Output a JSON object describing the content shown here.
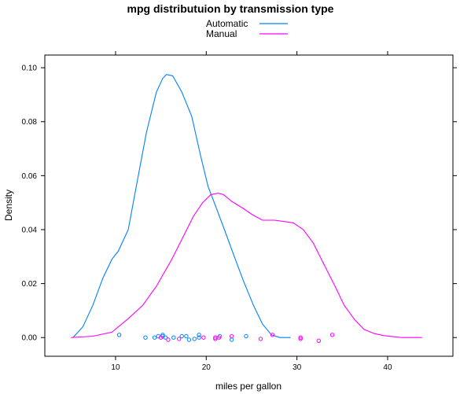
{
  "chart_data": {
    "type": "line",
    "title": "mpg distributuion by transmission type",
    "xlabel": "miles per gallon",
    "ylabel": "Density",
    "xlim": [
      2.2,
      47.2
    ],
    "ylim": [
      -0.00693,
      0.1047
    ],
    "grid": false,
    "legend_position": "top",
    "x_ticks": [
      10,
      20,
      30,
      40
    ],
    "x_tick_labels": [
      "10",
      "20",
      "30",
      "40"
    ],
    "y_ticks": [
      0.0,
      0.02,
      0.04,
      0.06,
      0.08,
      0.1
    ],
    "y_tick_labels": [
      "0.00",
      "0.02",
      "0.04",
      "0.06",
      "0.08",
      "0.10"
    ],
    "series": [
      {
        "name": "Automatic",
        "color": "#0080ff",
        "x": [
          5.3,
          6.4,
          7.5,
          8.6,
          9.6,
          10.3,
          11.4,
          12.4,
          13.4,
          14.5,
          15.2,
          15.6,
          16.3,
          17.3,
          18.4,
          19.4,
          20.2,
          21.0,
          22.0,
          23.1,
          24.1,
          25.2,
          26.2,
          27.2,
          28.1,
          28.8,
          29.3
        ],
        "y": [
          0.0,
          0.004,
          0.012,
          0.022,
          0.029,
          0.032,
          0.04,
          0.058,
          0.076,
          0.091,
          0.096,
          0.0975,
          0.097,
          0.091,
          0.082,
          0.067,
          0.056,
          0.049,
          0.04,
          0.03,
          0.021,
          0.012,
          0.005,
          0.001,
          0.0,
          0.0,
          0.0
        ]
      },
      {
        "name": "Manual",
        "color": "#ff00ff",
        "x": [
          5.1,
          7.5,
          9.6,
          11.4,
          13.0,
          14.5,
          16.2,
          17.4,
          18.6,
          19.6,
          20.5,
          21.3,
          21.9,
          22.8,
          24.0,
          25.1,
          26.2,
          27.5,
          28.6,
          29.6,
          30.7,
          31.8,
          33.0,
          34.2,
          35.2,
          36.4,
          37.4,
          38.5,
          39.6,
          40.7,
          41.6,
          42.5,
          43.4,
          43.8
        ],
        "y": [
          0.0,
          0.0005,
          0.002,
          0.007,
          0.012,
          0.019,
          0.029,
          0.037,
          0.045,
          0.05,
          0.053,
          0.0535,
          0.053,
          0.0505,
          0.048,
          0.0455,
          0.0435,
          0.0435,
          0.043,
          0.0425,
          0.04,
          0.035,
          0.027,
          0.019,
          0.012,
          0.0065,
          0.003,
          0.0015,
          0.0007,
          0.0003,
          0.0,
          0.0,
          0.0,
          0.0
        ]
      }
    ],
    "rug": [
      {
        "series": "Automatic",
        "points": [
          {
            "x": 10.4,
            "y": 0.001
          },
          {
            "x": 13.3,
            "y": 0.0
          },
          {
            "x": 14.3,
            "y": 0.0
          },
          {
            "x": 14.7,
            "y": 0.0005
          },
          {
            "x": 15.2,
            "y": 0.001
          },
          {
            "x": 15.5,
            "y": 0.0
          },
          {
            "x": 15.2,
            "y": 0.0005
          },
          {
            "x": 16.4,
            "y": 0.0
          },
          {
            "x": 17.3,
            "y": 0.0005
          },
          {
            "x": 17.8,
            "y": 0.0005
          },
          {
            "x": 18.1,
            "y": -0.0008
          },
          {
            "x": 18.7,
            "y": -0.0005
          },
          {
            "x": 19.2,
            "y": 0.001
          },
          {
            "x": 19.2,
            "y": 0.0
          },
          {
            "x": 21.5,
            "y": 0.0005
          },
          {
            "x": 22.8,
            "y": -0.0008
          },
          {
            "x": 24.4,
            "y": 0.0005
          }
        ]
      },
      {
        "series": "Manual",
        "points": [
          {
            "x": 15.0,
            "y": 0.0
          },
          {
            "x": 15.8,
            "y": -0.0008
          },
          {
            "x": 17.0,
            "y": -0.0005
          },
          {
            "x": 19.7,
            "y": 0.0
          },
          {
            "x": 21.0,
            "y": -0.0005
          },
          {
            "x": 21.0,
            "y": 0.0
          },
          {
            "x": 21.4,
            "y": 0.0
          },
          {
            "x": 22.8,
            "y": 0.0005
          },
          {
            "x": 26.0,
            "y": -0.0005
          },
          {
            "x": 27.3,
            "y": 0.001
          },
          {
            "x": 30.4,
            "y": 0.0
          },
          {
            "x": 30.4,
            "y": -0.0005
          },
          {
            "x": 32.4,
            "y": -0.0012
          },
          {
            "x": 33.9,
            "y": 0.001
          }
        ]
      }
    ]
  }
}
